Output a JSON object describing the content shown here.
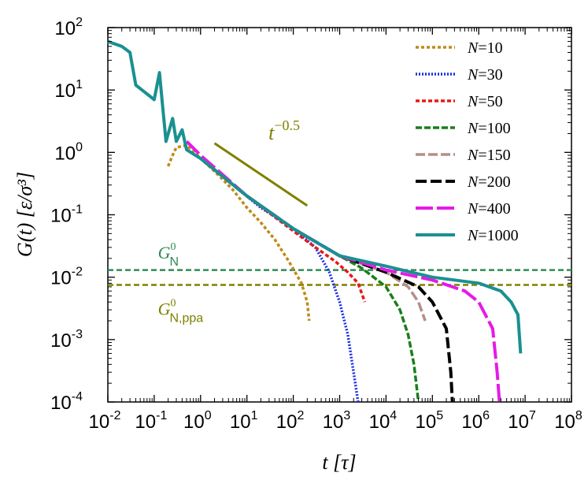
{
  "chart_data": {
    "type": "line",
    "title": "",
    "xlabel": "t [τ]",
    "ylabel": "G(t) [ε/σ³]",
    "xscale": "log",
    "yscale": "log",
    "xlim": [
      0.01,
      100000000
    ],
    "ylim": [
      0.0001,
      100
    ],
    "grid": false,
    "legend_position": "top-right",
    "x_ticks": [
      {
        "base": "10",
        "exp": "-2",
        "value": 0.01
      },
      {
        "base": "10",
        "exp": "-1",
        "value": 0.1
      },
      {
        "base": "10",
        "exp": "0",
        "value": 1
      },
      {
        "base": "10",
        "exp": "1",
        "value": 10
      },
      {
        "base": "10",
        "exp": "2",
        "value": 100
      },
      {
        "base": "10",
        "exp": "3",
        "value": 1000
      },
      {
        "base": "10",
        "exp": "4",
        "value": 10000
      },
      {
        "base": "10",
        "exp": "5",
        "value": 100000
      },
      {
        "base": "10",
        "exp": "6",
        "value": 1000000
      },
      {
        "base": "10",
        "exp": "7",
        "value": 10000000
      },
      {
        "base": "10",
        "exp": "8",
        "value": 100000000
      }
    ],
    "y_ticks": [
      {
        "base": "10",
        "exp": "-4",
        "value": 0.0001
      },
      {
        "base": "10",
        "exp": "-3",
        "value": 0.001
      },
      {
        "base": "10",
        "exp": "-2",
        "value": 0.01
      },
      {
        "base": "10",
        "exp": "-1",
        "value": 0.1
      },
      {
        "base": "10",
        "exp": "0",
        "value": 1
      },
      {
        "base": "10",
        "exp": "1",
        "value": 10
      },
      {
        "base": "10",
        "exp": "2",
        "value": 100
      }
    ],
    "series": [
      {
        "name": "N=10",
        "prefix": "N",
        "eq": "=",
        "num": "10",
        "color": "#c08a1a",
        "dash": "4,3",
        "width": 3.5,
        "points": [
          [
            0.2,
            0.6
          ],
          [
            0.25,
            0.9
          ],
          [
            0.3,
            1.2
          ],
          [
            0.5,
            1.3
          ],
          [
            1,
            0.8
          ],
          [
            2,
            0.5
          ],
          [
            5,
            0.25
          ],
          [
            10,
            0.13
          ],
          [
            20,
            0.075
          ],
          [
            40,
            0.04
          ],
          [
            80,
            0.018
          ],
          [
            150,
            0.008
          ],
          [
            200,
            0.004
          ],
          [
            220,
            0.002
          ]
        ]
      },
      {
        "name": "N=30",
        "prefix": "N",
        "eq": "=",
        "num": "30",
        "color": "#1a2ee6",
        "dash": "2,2",
        "width": 3.5,
        "points": [
          [
            1,
            0.8
          ],
          [
            5,
            0.3
          ],
          [
            20,
            0.13
          ],
          [
            100,
            0.06
          ],
          [
            300,
            0.03
          ],
          [
            600,
            0.012
          ],
          [
            1000,
            0.004
          ],
          [
            1500,
            0.0012
          ],
          [
            2000,
            0.0003
          ],
          [
            2500,
            0.0001
          ]
        ]
      },
      {
        "name": "N=50",
        "prefix": "N",
        "eq": "=",
        "num": "50",
        "color": "#e61a1a",
        "dash": "5,3",
        "width": 3.5,
        "points": [
          [
            1,
            0.8
          ],
          [
            10,
            0.2
          ],
          [
            100,
            0.055
          ],
          [
            300,
            0.03
          ],
          [
            800,
            0.018
          ],
          [
            1500,
            0.012
          ],
          [
            2500,
            0.008
          ],
          [
            3500,
            0.004
          ]
        ]
      },
      {
        "name": "N=100",
        "prefix": "N",
        "eq": "=",
        "num": "100",
        "color": "#1a7f1a",
        "dash": "8,3",
        "width": 3.5,
        "points": [
          [
            1,
            0.8
          ],
          [
            10,
            0.2
          ],
          [
            100,
            0.06
          ],
          [
            1000,
            0.022
          ],
          [
            3000,
            0.014
          ],
          [
            10000,
            0.007
          ],
          [
            20000,
            0.003
          ],
          [
            30000,
            0.0012
          ],
          [
            40000,
            0.0004
          ],
          [
            50000,
            0.0001
          ]
        ]
      },
      {
        "name": "N=150",
        "prefix": "N",
        "eq": "=",
        "num": "150",
        "color": "#b38f8a",
        "dash": "12,4",
        "width": 3.5,
        "points": [
          [
            1,
            0.8
          ],
          [
            10,
            0.2
          ],
          [
            100,
            0.06
          ],
          [
            1000,
            0.022
          ],
          [
            10000,
            0.012
          ],
          [
            30000,
            0.007
          ],
          [
            50000,
            0.004
          ],
          [
            70000,
            0.002
          ]
        ]
      },
      {
        "name": "N=200",
        "prefix": "N",
        "eq": "=",
        "num": "200",
        "color": "#000000",
        "dash": "14,5",
        "width": 4,
        "points": [
          [
            1,
            0.8
          ],
          [
            10,
            0.2
          ],
          [
            100,
            0.06
          ],
          [
            1000,
            0.022
          ],
          [
            10000,
            0.012
          ],
          [
            50000,
            0.007
          ],
          [
            100000,
            0.004
          ],
          [
            200000,
            0.0015
          ],
          [
            250000,
            0.0003
          ],
          [
            270000,
            0.0001
          ]
        ]
      },
      {
        "name": "N=400",
        "prefix": "N",
        "eq": "=",
        "num": "400",
        "color": "#e61ae6",
        "dash": "22,5",
        "width": 4,
        "points": [
          [
            0.5,
            1.5
          ],
          [
            1,
            0.9
          ],
          [
            10,
            0.2
          ],
          [
            100,
            0.06
          ],
          [
            1000,
            0.022
          ],
          [
            10000,
            0.013
          ],
          [
            100000,
            0.009
          ],
          [
            500000,
            0.006
          ],
          [
            1000000,
            0.004
          ],
          [
            2000000,
            0.0015
          ],
          [
            2500000,
            0.0003
          ],
          [
            2800000,
            0.0001
          ]
        ]
      },
      {
        "name": "N=1000",
        "prefix": "N",
        "eq": "=",
        "num": "1000",
        "color": "#1a9090",
        "dash": "",
        "width": 4,
        "points": [
          [
            0.01,
            60
          ],
          [
            0.02,
            50
          ],
          [
            0.03,
            40
          ],
          [
            0.04,
            12
          ],
          [
            0.1,
            7
          ],
          [
            0.13,
            19
          ],
          [
            0.15,
            6
          ],
          [
            0.18,
            1.5
          ],
          [
            0.25,
            3.5
          ],
          [
            0.3,
            1.5
          ],
          [
            0.4,
            2.3
          ],
          [
            0.5,
            1.1
          ],
          [
            1,
            0.8
          ],
          [
            10,
            0.2
          ],
          [
            100,
            0.06
          ],
          [
            1000,
            0.022
          ],
          [
            10000,
            0.015
          ],
          [
            100000,
            0.01
          ],
          [
            1000000,
            0.008
          ],
          [
            3000000,
            0.006
          ],
          [
            5000000,
            0.004
          ],
          [
            7000000,
            0.0025
          ],
          [
            8000000,
            0.0006
          ]
        ]
      }
    ],
    "annotations": {
      "slope": {
        "base": "t",
        "exp": "−0.5",
        "color": "#808000",
        "line": [
          [
            2,
            1.4
          ],
          [
            200,
            0.14
          ]
        ],
        "label_at": [
          40,
          1.6
        ]
      },
      "plateaus": [
        {
          "base": "G",
          "sup": "0",
          "sub": "N",
          "color": "#2e8b57",
          "value": 0.013,
          "label_at": [
            0.12,
            0.02
          ]
        },
        {
          "base": "G",
          "sup": "0",
          "sub": "N,ppa",
          "color": "#808000",
          "value": 0.0075,
          "label_at": [
            0.12,
            0.0025
          ]
        }
      ]
    }
  }
}
